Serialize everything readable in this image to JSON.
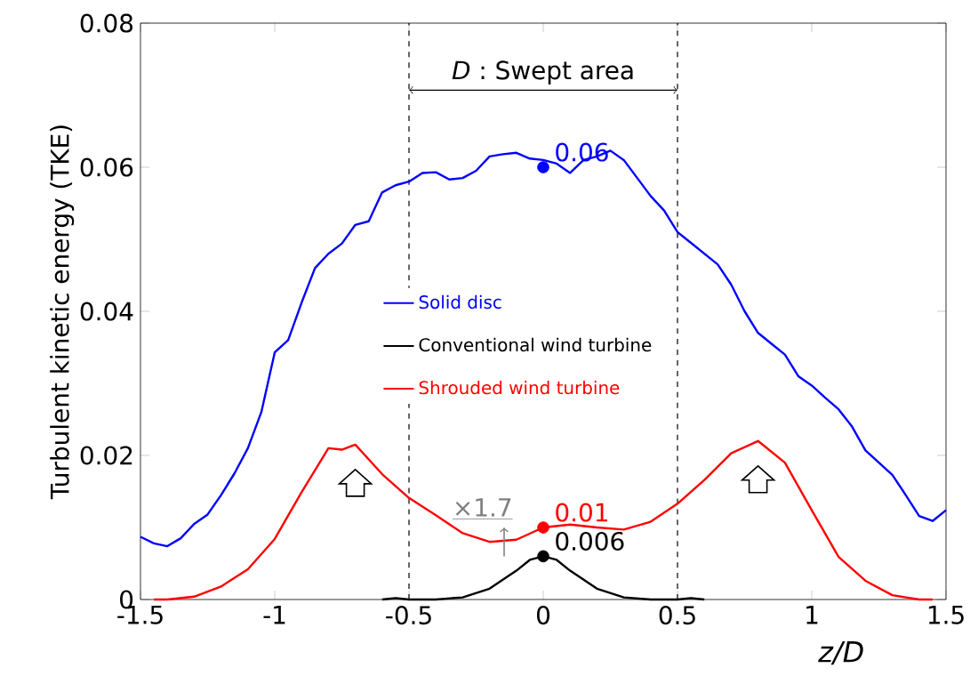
{
  "chart_data": {
    "type": "line",
    "xlabel": "z/D",
    "ylabel": "Turbulent kinetic energy (TKE)",
    "xlim": [
      -1.5,
      1.5
    ],
    "ylim": [
      0,
      0.08
    ],
    "xticks": [
      -1.5,
      -1,
      -0.5,
      0,
      0.5,
      1,
      1.5
    ],
    "yticks": [
      0,
      0.02,
      0.04,
      0.06,
      0.08
    ],
    "grid": false,
    "legend": "center",
    "series": [
      {
        "name": "Solid disc",
        "color": "#0000ff",
        "x": [
          -1.5,
          -1.45,
          -1.4,
          -1.35,
          -1.3,
          -1.25,
          -1.2,
          -1.15,
          -1.1,
          -1.05,
          -1.0,
          -0.95,
          -0.9,
          -0.85,
          -0.8,
          -0.75,
          -0.7,
          -0.65,
          -0.6,
          -0.55,
          -0.5,
          -0.45,
          -0.4,
          -0.35,
          -0.3,
          -0.25,
          -0.2,
          -0.15,
          -0.1,
          -0.05,
          0,
          0.05,
          0.1,
          0.15,
          0.2,
          0.25,
          0.3,
          0.35,
          0.4,
          0.45,
          0.5,
          0.55,
          0.6,
          0.65,
          0.7,
          0.75,
          0.8,
          0.85,
          0.9,
          0.95,
          1.0,
          1.05,
          1.1,
          1.15,
          1.2,
          1.25,
          1.3,
          1.35,
          1.4,
          1.45,
          1.5
        ],
        "values": [
          0.0087,
          0.0078,
          0.0074,
          0.0085,
          0.0105,
          0.0118,
          0.0145,
          0.0175,
          0.021,
          0.026,
          0.0343,
          0.036,
          0.0412,
          0.046,
          0.048,
          0.0494,
          0.052,
          0.0525,
          0.0565,
          0.0575,
          0.058,
          0.0592,
          0.0593,
          0.0583,
          0.0585,
          0.0595,
          0.0615,
          0.0618,
          0.062,
          0.0612,
          0.061,
          0.0605,
          0.0592,
          0.061,
          0.0615,
          0.0623,
          0.061,
          0.0585,
          0.056,
          0.054,
          0.051,
          0.0495,
          0.048,
          0.0465,
          0.0437,
          0.04,
          0.037,
          0.0355,
          0.034,
          0.031,
          0.0297,
          0.028,
          0.0264,
          0.024,
          0.0207,
          0.019,
          0.0173,
          0.0145,
          0.0116,
          0.0109,
          0.0124
        ]
      },
      {
        "name": "Conventional wind turbine",
        "color": "#000000",
        "x": [
          -0.6,
          -0.55,
          -0.5,
          -0.45,
          -0.4,
          -0.3,
          -0.2,
          -0.1,
          -0.05,
          0,
          0.05,
          0.1,
          0.2,
          0.3,
          0.4,
          0.45,
          0.5,
          0.55,
          0.6
        ],
        "values": [
          0,
          0.0002,
          0,
          0,
          0,
          0.0003,
          0.0015,
          0.004,
          0.0055,
          0.006,
          0.0055,
          0.004,
          0.0015,
          0.0003,
          0,
          0,
          0,
          0.0002,
          0
        ]
      },
      {
        "name": "Shrouded wind turbine",
        "color": "#ff0000",
        "x": [
          -1.45,
          -1.4,
          -1.3,
          -1.2,
          -1.1,
          -1.0,
          -0.9,
          -0.8,
          -0.75,
          -0.7,
          -0.6,
          -0.5,
          -0.4,
          -0.3,
          -0.2,
          -0.1,
          0,
          0.1,
          0.2,
          0.3,
          0.4,
          0.5,
          0.6,
          0.7,
          0.8,
          0.9,
          1.0,
          1.1,
          1.2,
          1.3,
          1.4,
          1.45
        ],
        "values": [
          0,
          0,
          0.0004,
          0.0018,
          0.0042,
          0.0084,
          0.0149,
          0.021,
          0.0208,
          0.0215,
          0.0174,
          0.0141,
          0.0117,
          0.0092,
          0.008,
          0.0083,
          0.01,
          0.0104,
          0.01,
          0.0097,
          0.0108,
          0.0133,
          0.0166,
          0.0203,
          0.022,
          0.019,
          0.0124,
          0.0059,
          0.0026,
          0.0006,
          0,
          0
        ]
      },
      {
        "type": "scatter",
        "marker": "circle",
        "color": "#0000ff",
        "x": [
          0
        ],
        "values": [
          0.06
        ],
        "value_labels": [
          "0.06"
        ]
      },
      {
        "type": "scatter",
        "marker": "circle",
        "color": "#ff0000",
        "x": [
          0
        ],
        "values": [
          0.01
        ],
        "value_labels": [
          "0.01"
        ]
      },
      {
        "type": "scatter",
        "marker": "circle",
        "color": "#000000",
        "x": [
          0
        ],
        "values": [
          0.006
        ],
        "value_labels": [
          "0.006"
        ]
      }
    ],
    "ref_lines": [
      {
        "axis": "x",
        "value": -0.5,
        "line_style": "dashed"
      },
      {
        "axis": "x",
        "value": 0.5,
        "line_style": "dashed"
      }
    ],
    "annotations": [
      "*D* : Swept area",
      "×1.7"
    ]
  }
}
